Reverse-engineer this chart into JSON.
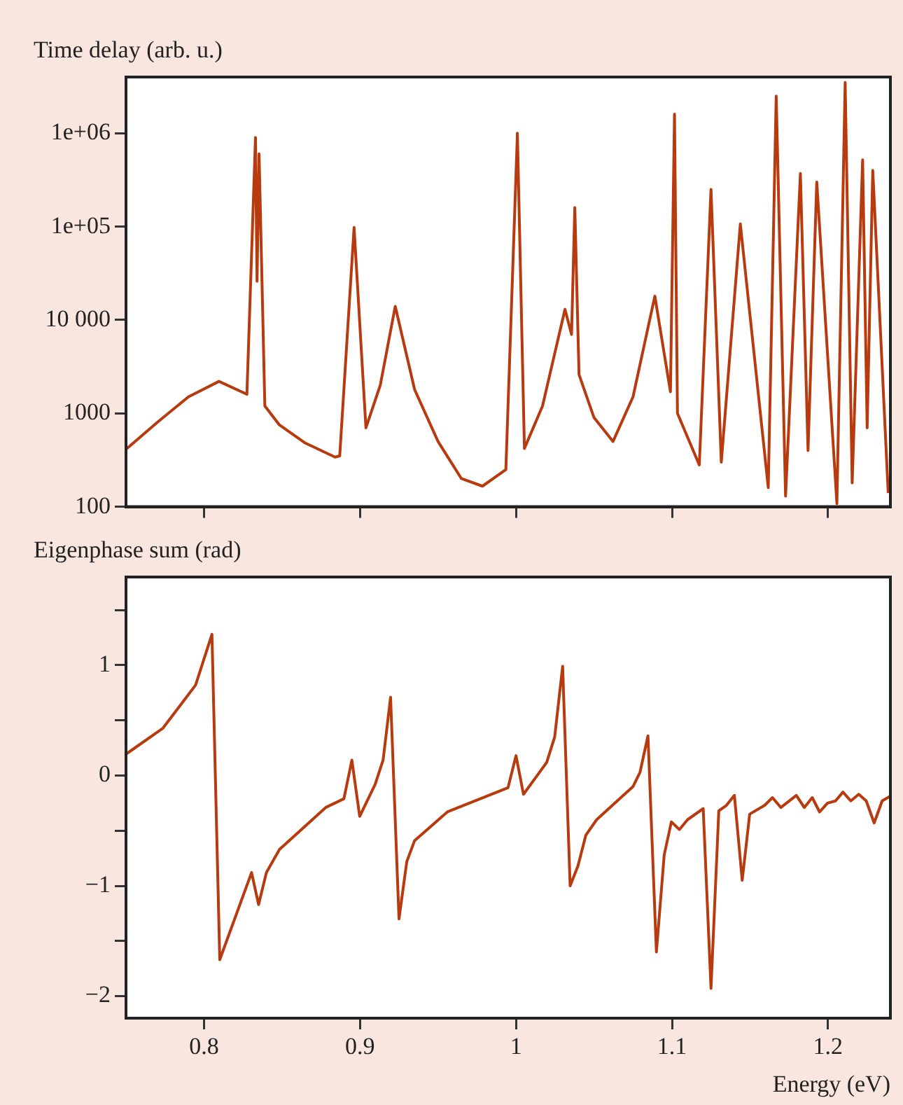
{
  "chart_data": [
    {
      "type": "line",
      "ylabel": "Time delay (arb. u.)",
      "log": "y",
      "grid": false,
      "tick_labels": "y",
      "x": [
        0.7506,
        0.77,
        0.79,
        0.8096,
        0.8275,
        0.833,
        0.834,
        0.8353,
        0.839,
        0.8484,
        0.865,
        0.884,
        0.887,
        0.8962,
        0.9038,
        0.913,
        0.9226,
        0.935,
        0.95,
        0.965,
        0.9785,
        0.9935,
        1.0009,
        1.0054,
        1.017,
        1.0314,
        1.0356,
        1.0377,
        1.0404,
        1.05,
        1.0622,
        1.075,
        1.089,
        1.099,
        1.1016,
        1.1035,
        1.1175,
        1.125,
        1.1316,
        1.1438,
        1.1617,
        1.1668,
        1.1728,
        1.1823,
        1.1872,
        1.1928,
        1.2057,
        1.211,
        1.2155,
        1.2222,
        1.2251,
        1.2287,
        1.2386
      ],
      "series": [
        {
          "color": "#b83a0f",
          "values": [
            420,
            800,
            1500,
            2200,
            1600,
            900000,
            26000,
            600000,
            1200,
            750,
            480,
            340,
            350,
            98000,
            700,
            2000,
            14000,
            1800,
            500,
            200,
            166,
            250,
            1000000,
            420,
            1200,
            13000,
            7000,
            160000,
            2600,
            900,
            500,
            1500,
            18000,
            1700,
            1600000,
            1000,
            280,
            250000,
            300,
            107000,
            160,
            2500000,
            130,
            370000,
            400,
            300000,
            108,
            3500000,
            180,
            520000,
            700,
            400000,
            140
          ]
        }
      ],
      "xlim": [
        0.75,
        1.24
      ],
      "xticks": [
        0.8,
        0.9,
        1,
        1.1,
        1.2
      ],
      "ylim": [
        100,
        4000000
      ],
      "yticks": [
        100,
        1000,
        {
          "value": 10000,
          "label": "10 000"
        },
        {
          "value": 100000,
          "label": "1e+05"
        },
        {
          "value": 1000000,
          "label": "1e+06"
        }
      ]
    },
    {
      "type": "line",
      "ylabel": "Eigenphase sum (rad)",
      "xlabel": "Energy (eV)",
      "grid": false,
      "x": [
        0.7506,
        0.7737,
        0.7946,
        0.8051,
        0.8101,
        0.8305,
        0.835,
        0.84,
        0.8484,
        0.878,
        0.8897,
        0.8948,
        0.8998,
        0.9097,
        0.9148,
        0.9196,
        0.925,
        0.93,
        0.935,
        0.956,
        0.9949,
        1.0,
        1.0048,
        1.0197,
        1.0248,
        1.0299,
        1.0347,
        1.0397,
        1.0448,
        1.0517,
        1.075,
        1.0795,
        1.0846,
        1.09,
        1.095,
        1.0996,
        1.1047,
        1.11,
        1.12,
        1.125,
        1.13,
        1.1349,
        1.14,
        1.145,
        1.1498,
        1.1594,
        1.1644,
        1.1698,
        1.1797,
        1.1848,
        1.1899,
        1.1946,
        1.1997,
        1.2048,
        1.2096,
        1.2146,
        1.2197,
        1.2245,
        1.2296,
        1.2347,
        1.2395
      ],
      "series": [
        {
          "color": "#b83a0f",
          "values": [
            0.2,
            0.43,
            0.82,
            1.28,
            -1.67,
            -0.88,
            -1.17,
            -0.88,
            -0.67,
            -0.29,
            -0.21,
            0.14,
            -0.37,
            -0.08,
            0.14,
            0.71,
            -1.3,
            -0.78,
            -0.59,
            -0.33,
            -0.11,
            0.18,
            -0.17,
            0.12,
            0.35,
            0.99,
            -1.0,
            -0.82,
            -0.54,
            -0.4,
            -0.1,
            0.03,
            0.36,
            -1.6,
            -0.72,
            -0.42,
            -0.49,
            -0.4,
            -0.3,
            -1.93,
            -0.32,
            -0.27,
            -0.18,
            -0.95,
            -0.35,
            -0.27,
            -0.2,
            -0.29,
            -0.18,
            -0.29,
            -0.2,
            -0.33,
            -0.25,
            -0.23,
            -0.15,
            -0.23,
            -0.17,
            -0.23,
            -0.43,
            -0.23,
            -0.19
          ]
        }
      ],
      "xlim": [
        0.75,
        1.24
      ],
      "xticks": [
        0.8,
        0.9,
        1,
        1.1,
        1.2
      ],
      "ylim": [
        -2.2,
        1.8
      ],
      "yticks": [
        {
          "value": -2,
          "label": "−2"
        },
        {
          "value": -1.5,
          "label": null
        },
        {
          "value": -1,
          "label": "−1"
        },
        {
          "value": -0.5,
          "label": null
        },
        0,
        {
          "value": 0.5,
          "label": null
        },
        1,
        {
          "value": 1.5,
          "label": null
        }
      ]
    }
  ]
}
